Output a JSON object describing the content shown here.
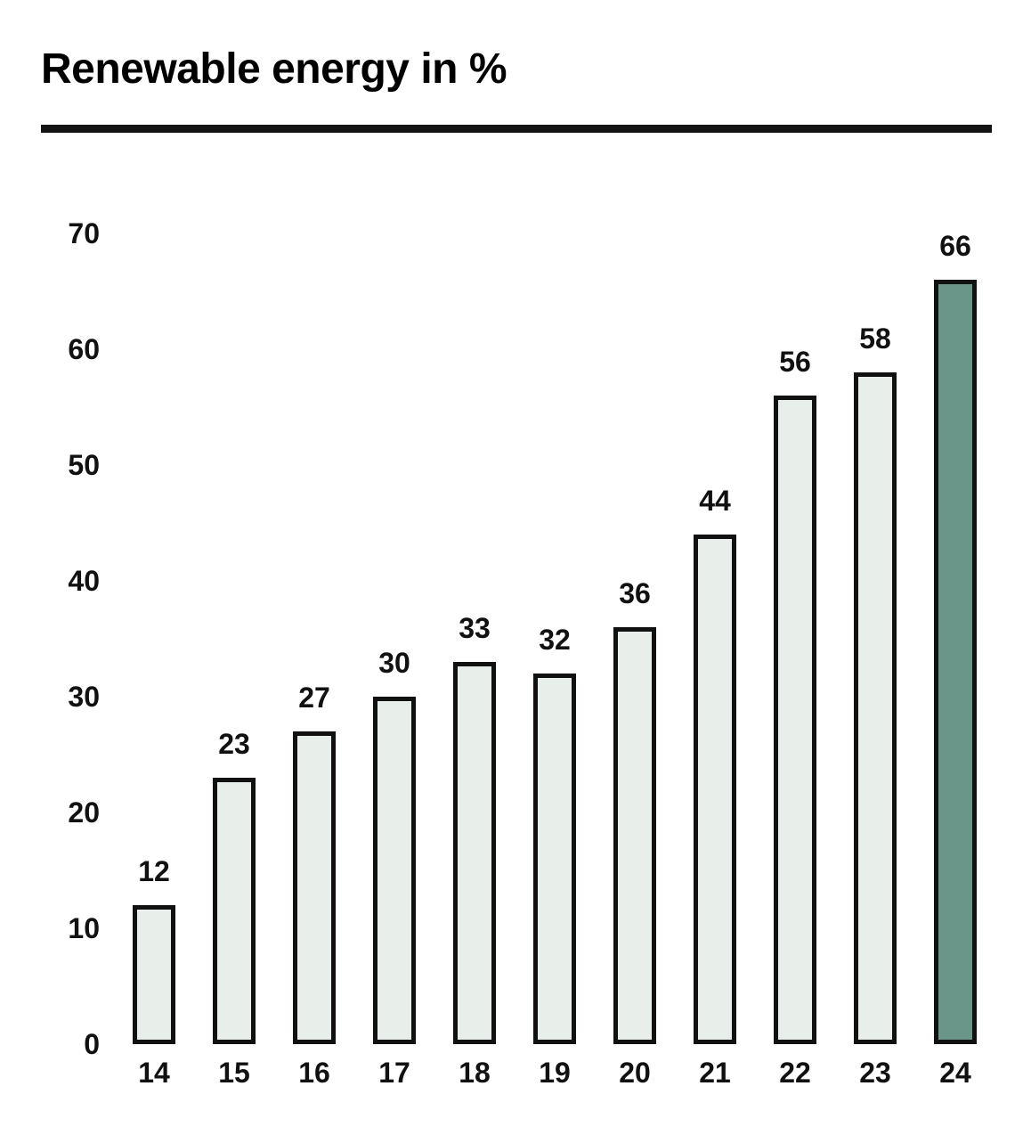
{
  "header": {
    "title": "Renewable energy in %"
  },
  "chart_data": {
    "type": "bar",
    "title": "Renewable energy in %",
    "categories": [
      "14",
      "15",
      "16",
      "17",
      "18",
      "19",
      "20",
      "21",
      "22",
      "23",
      "24"
    ],
    "values": [
      12,
      23,
      27,
      30,
      33,
      32,
      36,
      44,
      56,
      58,
      66
    ],
    "value_labels": [
      "12",
      "23",
      "27",
      "30",
      "33",
      "32",
      "36",
      "44",
      "56",
      "58",
      "66"
    ],
    "y_ticks": [
      70,
      60,
      50,
      40,
      30,
      20,
      10,
      0
    ],
    "ylim": [
      0,
      70
    ],
    "xlabel": "",
    "ylabel": "",
    "grid": false,
    "legend": false,
    "bar_fill": "#e8eeea",
    "bar_border": "#111111",
    "highlight_fill": "#6a9589",
    "highlight_index": 10,
    "title_color": "#000000",
    "label_color": "#111111"
  }
}
